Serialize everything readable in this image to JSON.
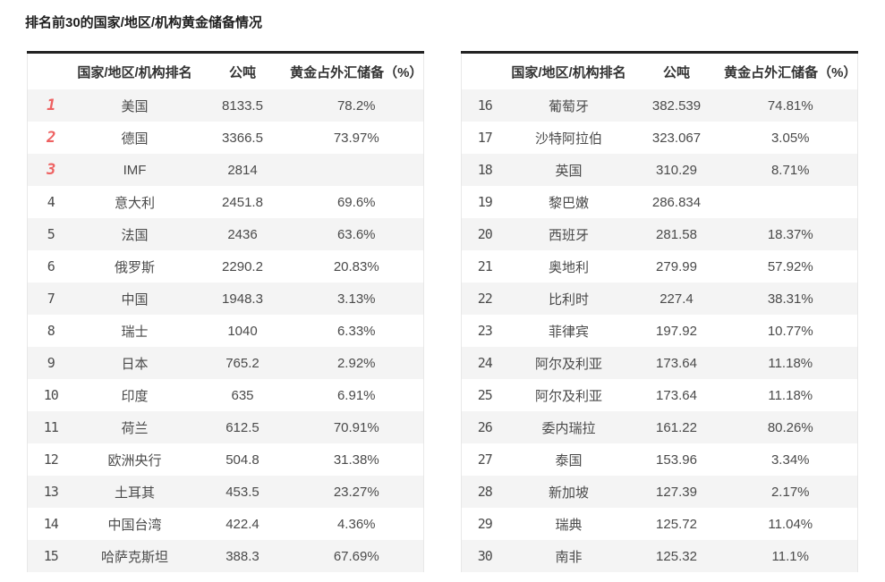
{
  "title": "排名前30的国家/地区/机构黄金储备情况",
  "colors": {
    "rank_top3": "#ee6161",
    "row_stripe": "#f4f4f4",
    "table_top_border": "#222222",
    "body_text": "#4a4a4a"
  },
  "tables": [
    {
      "headers": [
        "国家/地区/机构排名",
        "公吨",
        "黄金占外汇储备（%）"
      ],
      "rows": [
        {
          "rank": "1",
          "name": "美国",
          "tonnes": "8133.5",
          "pct": "78.2%"
        },
        {
          "rank": "2",
          "name": "德国",
          "tonnes": "3366.5",
          "pct": "73.97%"
        },
        {
          "rank": "3",
          "name": "IMF",
          "tonnes": "2814",
          "pct": ""
        },
        {
          "rank": "4",
          "name": "意大利",
          "tonnes": "2451.8",
          "pct": "69.6%"
        },
        {
          "rank": "5",
          "name": "法国",
          "tonnes": "2436",
          "pct": "63.6%"
        },
        {
          "rank": "6",
          "name": "俄罗斯",
          "tonnes": "2290.2",
          "pct": "20.83%"
        },
        {
          "rank": "7",
          "name": "中国",
          "tonnes": "1948.3",
          "pct": "3.13%"
        },
        {
          "rank": "8",
          "name": "瑞士",
          "tonnes": "1040",
          "pct": "6.33%"
        },
        {
          "rank": "9",
          "name": "日本",
          "tonnes": "765.2",
          "pct": "2.92%"
        },
        {
          "rank": "10",
          "name": "印度",
          "tonnes": "635",
          "pct": "6.91%"
        },
        {
          "rank": "11",
          "name": "荷兰",
          "tonnes": "612.5",
          "pct": "70.91%"
        },
        {
          "rank": "12",
          "name": "欧洲央行",
          "tonnes": "504.8",
          "pct": "31.38%"
        },
        {
          "rank": "13",
          "name": "土耳其",
          "tonnes": "453.5",
          "pct": "23.27%"
        },
        {
          "rank": "14",
          "name": "中国台湾",
          "tonnes": "422.4",
          "pct": "4.36%"
        },
        {
          "rank": "15",
          "name": "哈萨克斯坦",
          "tonnes": "388.3",
          "pct": "67.69%"
        }
      ]
    },
    {
      "headers": [
        "国家/地区/机构排名",
        "公吨",
        "黄金占外汇储备（%）"
      ],
      "rows": [
        {
          "rank": "16",
          "name": "葡萄牙",
          "tonnes": "382.539",
          "pct": "74.81%"
        },
        {
          "rank": "17",
          "name": "沙特阿拉伯",
          "tonnes": "323.067",
          "pct": "3.05%"
        },
        {
          "rank": "18",
          "name": "英国",
          "tonnes": "310.29",
          "pct": "8.71%"
        },
        {
          "rank": "19",
          "name": "黎巴嫩",
          "tonnes": "286.834",
          "pct": ""
        },
        {
          "rank": "20",
          "name": "西班牙",
          "tonnes": "281.58",
          "pct": "18.37%"
        },
        {
          "rank": "21",
          "name": "奥地利",
          "tonnes": "279.99",
          "pct": "57.92%"
        },
        {
          "rank": "22",
          "name": "比利时",
          "tonnes": "227.4",
          "pct": "38.31%"
        },
        {
          "rank": "23",
          "name": "菲律宾",
          "tonnes": "197.92",
          "pct": "10.77%"
        },
        {
          "rank": "24",
          "name": "阿尔及利亚",
          "tonnes": "173.64",
          "pct": "11.18%"
        },
        {
          "rank": "25",
          "name": "阿尔及利亚",
          "tonnes": "173.64",
          "pct": "11.18%"
        },
        {
          "rank": "26",
          "name": "委内瑞拉",
          "tonnes": "161.22",
          "pct": "80.26%"
        },
        {
          "rank": "27",
          "name": "泰国",
          "tonnes": "153.96",
          "pct": "3.34%"
        },
        {
          "rank": "28",
          "name": "新加坡",
          "tonnes": "127.39",
          "pct": "2.17%"
        },
        {
          "rank": "29",
          "name": "瑞典",
          "tonnes": "125.72",
          "pct": "11.04%"
        },
        {
          "rank": "30",
          "name": "南非",
          "tonnes": "125.32",
          "pct": "11.1%"
        }
      ]
    }
  ]
}
